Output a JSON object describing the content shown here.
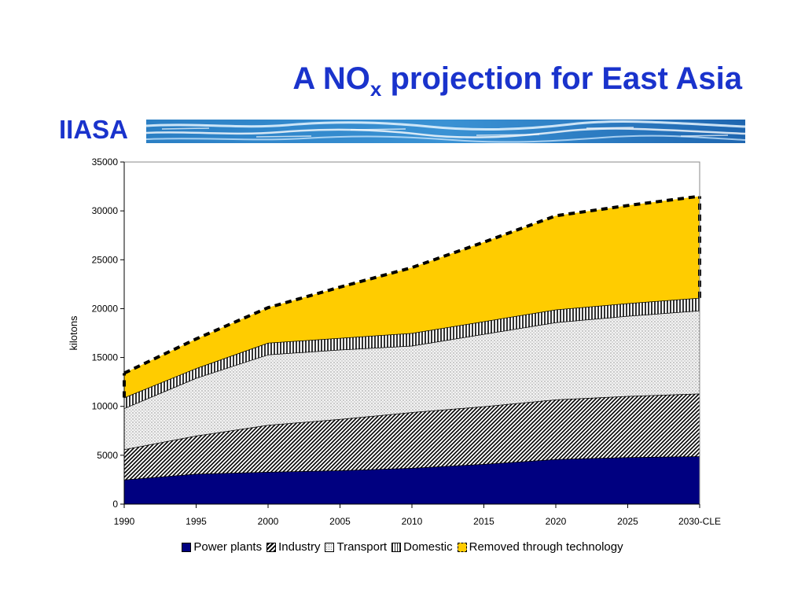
{
  "slide": {
    "title_main": "A NO",
    "title_sub": "x",
    "title_rest": " projection for East Asia",
    "org": "IIASA"
  },
  "colors": {
    "title": "#1a33cc",
    "power_plants": "#000080",
    "removed": "#ffcc00"
  },
  "chart_data": {
    "type": "area",
    "stacked": true,
    "categories": [
      "1990",
      "1995",
      "2000",
      "2005",
      "2010",
      "2015",
      "2020",
      "2025",
      "2030-CLE"
    ],
    "ylabel": "kilotons",
    "xlabel": "",
    "ylim": [
      0,
      35000
    ],
    "yticks": [
      0,
      5000,
      10000,
      15000,
      20000,
      25000,
      30000,
      35000
    ],
    "grid": false,
    "legend_position": "bottom",
    "series": [
      {
        "name": "Power plants",
        "color": "#000080",
        "pattern": "solid",
        "values": [
          2500,
          3100,
          3300,
          3450,
          3700,
          4100,
          4600,
          4800,
          4900
        ]
      },
      {
        "name": "Industry",
        "color": "#000000",
        "pattern": "diagonal",
        "values": [
          3100,
          3900,
          4800,
          5250,
          5700,
          5900,
          6100,
          6250,
          6400
        ]
      },
      {
        "name": "Transport",
        "color": "#cccccc",
        "pattern": "dots",
        "values": [
          4200,
          5900,
          7200,
          7100,
          6800,
          7400,
          7900,
          8200,
          8500
        ]
      },
      {
        "name": "Domestic",
        "color": "#555555",
        "pattern": "vertical",
        "values": [
          1100,
          1000,
          1200,
          1200,
          1300,
          1300,
          1300,
          1300,
          1300
        ]
      },
      {
        "name": "Removed through technology",
        "color": "#ffcc00",
        "pattern": "solid",
        "values": [
          2500,
          3000,
          3600,
          5200,
          6700,
          8100,
          9600,
          10000,
          10400
        ]
      }
    ]
  }
}
